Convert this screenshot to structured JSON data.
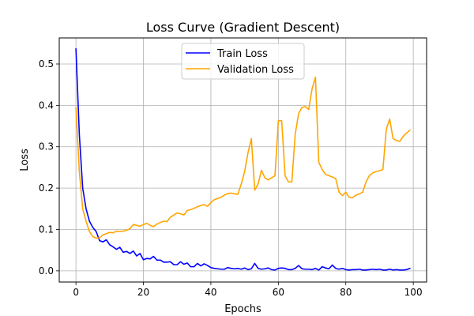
{
  "chart_data": {
    "type": "line",
    "title": "Loss Curve (Gradient Descent)",
    "xlabel": "Epochs",
    "ylabel": "Loss",
    "xlim": [
      -4.95,
      103.95
    ],
    "ylim": [
      -0.027,
      0.563
    ],
    "xticks": [
      0,
      20,
      40,
      60,
      80,
      100
    ],
    "yticks": [
      0.0,
      0.1,
      0.2,
      0.3,
      0.4,
      0.5
    ],
    "xtick_labels": [
      "0",
      "20",
      "40",
      "60",
      "80",
      "100"
    ],
    "ytick_labels": [
      "0.0",
      "0.1",
      "0.2",
      "0.3",
      "0.4",
      "0.5"
    ],
    "grid": true,
    "legend_position": "upper-center",
    "x": [
      0,
      1,
      2,
      3,
      4,
      5,
      6,
      7,
      8,
      9,
      10,
      11,
      12,
      13,
      14,
      15,
      16,
      17,
      18,
      19,
      20,
      21,
      22,
      23,
      24,
      25,
      26,
      27,
      28,
      29,
      30,
      31,
      32,
      33,
      34,
      35,
      36,
      37,
      38,
      39,
      40,
      41,
      42,
      43,
      44,
      45,
      46,
      47,
      48,
      49,
      50,
      51,
      52,
      53,
      54,
      55,
      56,
      57,
      58,
      59,
      60,
      61,
      62,
      63,
      64,
      65,
      66,
      67,
      68,
      69,
      70,
      71,
      72,
      73,
      74,
      75,
      76,
      77,
      78,
      79,
      80,
      81,
      82,
      83,
      84,
      85,
      86,
      87,
      88,
      89,
      90,
      91,
      92,
      93,
      94,
      95,
      96,
      97,
      98,
      99
    ],
    "series": [
      {
        "name": "Train Loss",
        "color": "#0000ff",
        "values": [
          0.537,
          0.33,
          0.2,
          0.15,
          0.12,
          0.105,
          0.095,
          0.073,
          0.07,
          0.075,
          0.063,
          0.058,
          0.052,
          0.057,
          0.045,
          0.047,
          0.042,
          0.048,
          0.036,
          0.042,
          0.027,
          0.03,
          0.029,
          0.035,
          0.026,
          0.026,
          0.021,
          0.021,
          0.022,
          0.015,
          0.015,
          0.022,
          0.016,
          0.019,
          0.01,
          0.01,
          0.018,
          0.012,
          0.017,
          0.013,
          0.008,
          0.006,
          0.005,
          0.004,
          0.004,
          0.008,
          0.006,
          0.005,
          0.006,
          0.004,
          0.007,
          0.003,
          0.005,
          0.018,
          0.006,
          0.004,
          0.005,
          0.007,
          0.003,
          0.002,
          0.006,
          0.007,
          0.006,
          0.003,
          0.003,
          0.006,
          0.013,
          0.005,
          0.004,
          0.004,
          0.003,
          0.006,
          0.002,
          0.01,
          0.007,
          0.005,
          0.014,
          0.006,
          0.004,
          0.006,
          0.003,
          0.002,
          0.003,
          0.003,
          0.004,
          0.002,
          0.002,
          0.003,
          0.004,
          0.003,
          0.004,
          0.002,
          0.002,
          0.004,
          0.002,
          0.003,
          0.002,
          0.002,
          0.003,
          0.006
        ]
      },
      {
        "name": "Validation Loss",
        "color": "#ffa500",
        "values": [
          0.395,
          0.24,
          0.15,
          0.12,
          0.095,
          0.083,
          0.079,
          0.08,
          0.087,
          0.09,
          0.093,
          0.092,
          0.096,
          0.095,
          0.096,
          0.098,
          0.102,
          0.112,
          0.11,
          0.108,
          0.112,
          0.115,
          0.11,
          0.107,
          0.113,
          0.117,
          0.12,
          0.119,
          0.13,
          0.135,
          0.14,
          0.138,
          0.135,
          0.146,
          0.148,
          0.151,
          0.155,
          0.158,
          0.16,
          0.156,
          0.165,
          0.172,
          0.175,
          0.178,
          0.183,
          0.187,
          0.188,
          0.186,
          0.185,
          0.21,
          0.24,
          0.285,
          0.32,
          0.195,
          0.21,
          0.243,
          0.225,
          0.22,
          0.225,
          0.23,
          0.363,
          0.363,
          0.23,
          0.215,
          0.215,
          0.33,
          0.38,
          0.395,
          0.397,
          0.39,
          0.44,
          0.468,
          0.262,
          0.245,
          0.233,
          0.23,
          0.227,
          0.223,
          0.19,
          0.182,
          0.19,
          0.178,
          0.177,
          0.183,
          0.186,
          0.19,
          0.215,
          0.23,
          0.237,
          0.24,
          0.242,
          0.245,
          0.342,
          0.367,
          0.32,
          0.315,
          0.313,
          0.325,
          0.333,
          0.34
        ]
      }
    ]
  }
}
